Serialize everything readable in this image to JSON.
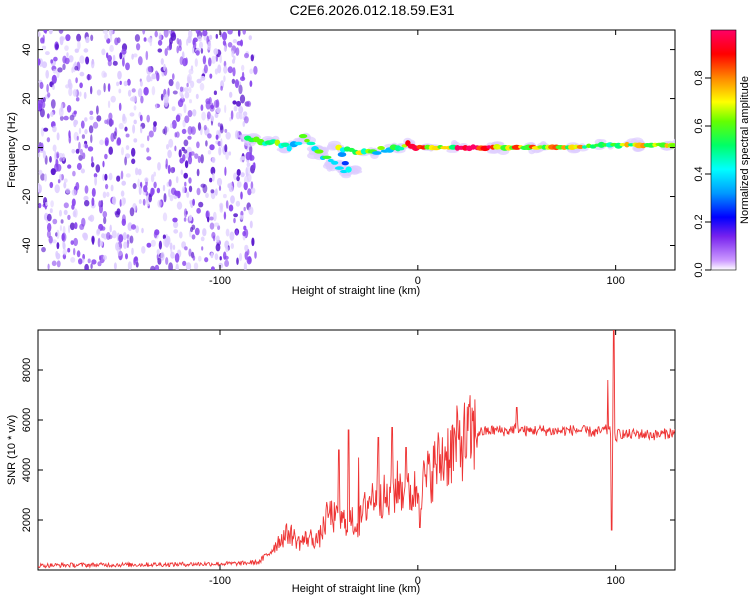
{
  "title": "C2E6.2026.012.18.59.E31",
  "colors": {
    "line": "#ee3333",
    "spec_low": "#8844ee",
    "spec_bg": "#ddccff"
  },
  "chart_data": [
    {
      "type": "heatmap",
      "xlabel": "Height of straight line (km)",
      "ylabel": "Frequency (Hz)",
      "xlim": [
        -192,
        130
      ],
      "ylim": [
        -50,
        48
      ],
      "xticks": [
        -100,
        0,
        100
      ],
      "yticks": [
        -40,
        -20,
        0,
        20,
        40
      ],
      "xtick_labels": [
        "-100",
        "0",
        "100"
      ],
      "ytick_labels": [
        "-40",
        "-20",
        "0",
        "20",
        "40"
      ],
      "noise_region_x": [
        -192,
        -82
      ],
      "signal_track": [
        {
          "x": -86,
          "y": 3,
          "v": 0.45
        },
        {
          "x": -75,
          "y": 2,
          "v": 0.5
        },
        {
          "x": -65,
          "y": 0,
          "v": 0.5
        },
        {
          "x": -58,
          "y": 4,
          "v": 0.45
        },
        {
          "x": -50,
          "y": -2,
          "v": 0.5
        },
        {
          "x": -42,
          "y": -7,
          "v": 0.45
        },
        {
          "x": -35,
          "y": -10,
          "v": 0.4
        },
        {
          "x": -40,
          "y": 0,
          "v": 0.55
        },
        {
          "x": -25,
          "y": -2,
          "v": 0.5
        },
        {
          "x": -10,
          "y": 0,
          "v": 0.55
        },
        {
          "x": -5,
          "y": 1,
          "v": 0.8
        },
        {
          "x": 5,
          "y": 0,
          "v": 0.6
        },
        {
          "x": 20,
          "y": 0,
          "v": 0.95
        },
        {
          "x": 40,
          "y": 0,
          "v": 0.7
        },
        {
          "x": 60,
          "y": 0,
          "v": 0.7
        },
        {
          "x": 80,
          "y": 0,
          "v": 0.65
        },
        {
          "x": 95,
          "y": 1,
          "v": 0.6
        },
        {
          "x": 110,
          "y": 1,
          "v": 0.7
        },
        {
          "x": 128,
          "y": 1,
          "v": 0.6
        }
      ],
      "colorbar": {
        "label": "Normalized spectral amplitude",
        "range": [
          0,
          1
        ],
        "ticks": [
          0.0,
          0.2,
          0.4,
          0.6,
          0.8
        ],
        "tick_labels": [
          "0.0",
          "0.2",
          "0.4",
          "0.6",
          "0.8"
        ]
      }
    },
    {
      "type": "line",
      "xlabel": "Height of straight line (km)",
      "ylabel": "SNR (10 * v/v)",
      "xlim": [
        -192,
        130
      ],
      "ylim": [
        0,
        9600
      ],
      "xticks": [
        -100,
        0,
        100
      ],
      "yticks": [
        2000,
        4000,
        6000,
        8000
      ],
      "xtick_labels": [
        "-100",
        "0",
        "100"
      ],
      "ytick_labels": [
        "2000",
        "4000",
        "6000",
        "8000"
      ],
      "x": [
        -192,
        -170,
        -150,
        -130,
        -110,
        -90,
        -80,
        -75,
        -70,
        -65,
        -60,
        -55,
        -50,
        -45,
        -40,
        -35,
        -30,
        -25,
        -20,
        -15,
        -10,
        -5,
        0,
        5,
        10,
        15,
        20,
        25,
        30,
        35,
        40,
        45,
        50,
        55,
        60,
        70,
        80,
        90,
        95,
        98,
        100,
        102,
        105,
        110,
        120,
        130
      ],
      "values": [
        180,
        200,
        210,
        220,
        240,
        260,
        320,
        700,
        1200,
        1500,
        1100,
        1300,
        1200,
        2300,
        1900,
        2000,
        1800,
        2800,
        3200,
        2700,
        3400,
        3000,
        3200,
        3700,
        4300,
        4700,
        5000,
        5300,
        5500,
        5550,
        5600,
        5550,
        5700,
        5550,
        5600,
        5550,
        5600,
        5500,
        5600,
        5500,
        5300,
        5500,
        5400,
        5450,
        5400,
        5500
      ],
      "spikes": [
        {
          "x": -40,
          "y": 4800
        },
        {
          "x": -35,
          "y": 5600
        },
        {
          "x": -30,
          "y": 4500
        },
        {
          "x": -20,
          "y": 5300
        },
        {
          "x": -13,
          "y": 5700
        },
        {
          "x": -6,
          "y": 4900
        },
        {
          "x": 1,
          "y": 1700
        },
        {
          "x": 50,
          "y": 6500
        },
        {
          "x": 96,
          "y": 7600
        },
        {
          "x": 98,
          "y": 1600
        },
        {
          "x": 99,
          "y": 9600
        },
        {
          "x": 100,
          "y": 5200
        }
      ]
    }
  ]
}
